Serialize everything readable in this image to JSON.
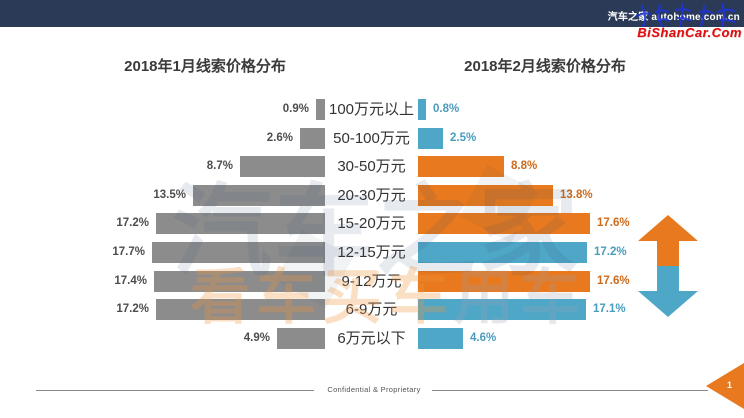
{
  "header": {
    "brand_text": "汽车之家 autohome.com.cn",
    "red_watermark": "BiShanCar.Com"
  },
  "titles": {
    "jan": "2018年1月线索价格分布",
    "feb": "2018年2月线索价格分布"
  },
  "watermark": {
    "line1": "汽车之家",
    "word1": "看车",
    "word2": "买车",
    "word3": "用车"
  },
  "footer": {
    "confidential": "Confidential & Proprietary",
    "page_number": "1"
  },
  "colors": {
    "navy": "#2B3A56",
    "orange": "#E8791E",
    "teal": "#4FA7C8",
    "gray_bar": "#8C8C8C",
    "gray_label": "#4D4D4D",
    "orange_label": "#CE6A1C",
    "teal_label": "#4A9CBD",
    "red": "#E30D0D"
  },
  "chart_data": {
    "type": "bar",
    "orientation": "horizontal-tornado",
    "title_left": "2018年1月线索价格分布",
    "title_right": "2018年2月线索价格分布",
    "unit": "%",
    "xlim": [
      0,
      18
    ],
    "categories": [
      "100万元以上",
      "50-100万元",
      "30-50万元",
      "20-30万元",
      "15-20万元",
      "12-15万元",
      "9-12万元",
      "6-9万元",
      "6万元以下"
    ],
    "series": [
      {
        "name": "2018年1月",
        "side": "left",
        "values": [
          0.9,
          2.6,
          8.7,
          13.5,
          17.2,
          17.7,
          17.4,
          17.2,
          4.9
        ],
        "labels": [
          "0.9%",
          "2.6%",
          "8.7%",
          "13.5%",
          "17.2%",
          "17.7%",
          "17.4%",
          "17.2%",
          "4.9%"
        ],
        "bar_colors": [
          "gray",
          "gray",
          "gray",
          "gray",
          "gray",
          "gray",
          "gray",
          "gray",
          "gray"
        ]
      },
      {
        "name": "2018年2月",
        "side": "right",
        "values": [
          0.8,
          2.5,
          8.8,
          13.8,
          17.6,
          17.2,
          17.6,
          17.1,
          4.6
        ],
        "labels": [
          "0.8%",
          "2.5%",
          "8.8%",
          "13.8%",
          "17.6%",
          "17.2%",
          "17.6%",
          "17.1%",
          "4.6%"
        ],
        "bar_colors": [
          "teal",
          "teal",
          "orange",
          "orange",
          "orange",
          "teal",
          "orange",
          "teal",
          "teal"
        ]
      }
    ],
    "legend_position": "none",
    "grid": false,
    "annotations": [
      "up-down arrow glyph right of February chart: orange up arrow over teal down arrow"
    ]
  }
}
